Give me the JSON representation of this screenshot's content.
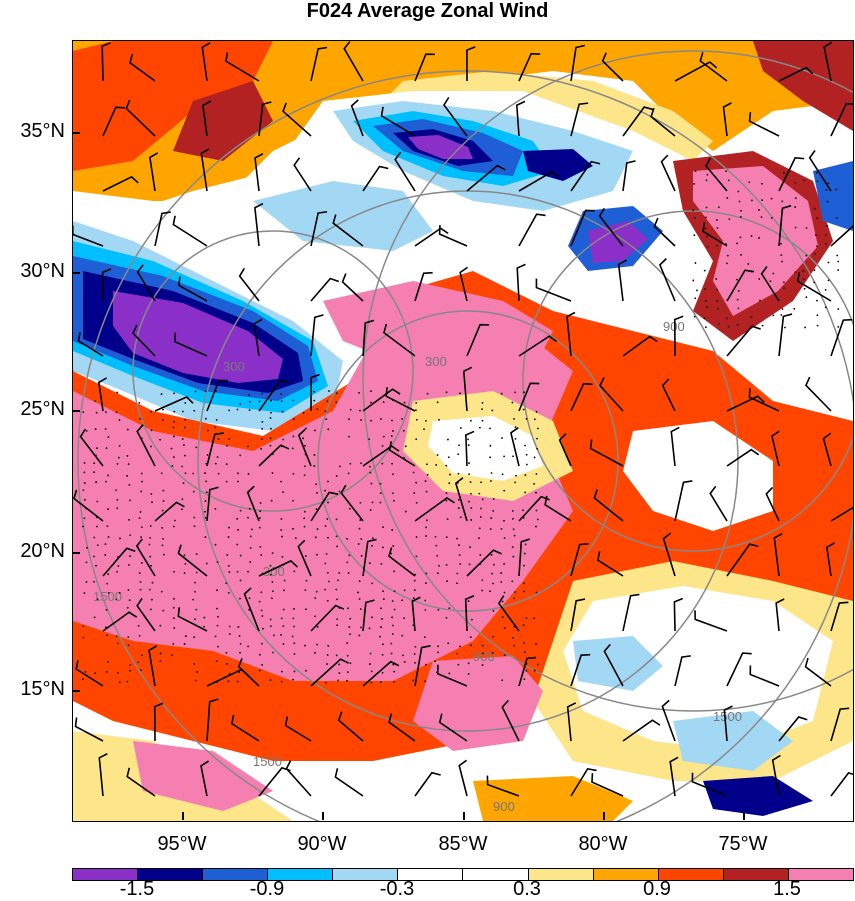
{
  "title": "F024 Average Zonal Wind",
  "latitude_labels": [
    "35°N",
    "30°N",
    "25°N",
    "20°N",
    "15°N"
  ],
  "longitude_labels": [
    "95°W",
    "90°W",
    "85°W",
    "80°W",
    "75°W"
  ],
  "colorbar": {
    "labels": [
      "-1.5",
      "-0.9",
      "-0.3",
      "0.3",
      "0.9",
      "1.5"
    ],
    "colors": [
      "#8b2fc9",
      "#00008b",
      "#1e5fd6",
      "#00bfff",
      "#a3d8f5",
      "#ffffff",
      "#ffffff",
      "#fde58a",
      "#ffa500",
      "#ff4500",
      "#b22222",
      "#f57fb0"
    ]
  },
  "contour_labels": [
    "300",
    "900",
    "1500",
    "300",
    "900",
    "1500",
    "300",
    "900",
    "1500"
  ],
  "legend_colors": {
    "strong_negative": "#8b2fc9",
    "neutral": "#ffffff",
    "strong_positive": "#f57fb0"
  }
}
